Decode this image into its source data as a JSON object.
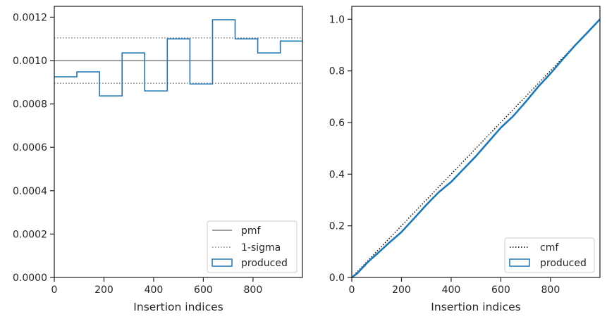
{
  "chart_data": [
    {
      "type": "line",
      "xlabel": "Insertion indices",
      "ylabel": "",
      "xlim": [
        0,
        999
      ],
      "ylim": [
        0,
        0.00125
      ],
      "xticks": [
        0,
        200,
        400,
        600,
        800
      ],
      "yticks": [
        0,
        0.0002,
        0.0004,
        0.0006,
        0.0008,
        0.001,
        0.0012
      ],
      "xtick_labels": [
        "0",
        "200",
        "400",
        "600",
        "800"
      ],
      "ytick_labels": [
        "0.0000",
        "0.0002",
        "0.0004",
        "0.0006",
        "0.0008",
        "0.0010",
        "0.0012"
      ],
      "grid": false,
      "legend_position": "lower-right",
      "series": [
        {
          "name": "pmf",
          "style": "solid",
          "color": "#808080",
          "y": 0.001
        },
        {
          "name": "1-sigma",
          "style": "dotted",
          "color": "#808080",
          "y_values": [
            0.0008953,
            0.0011047
          ]
        },
        {
          "name": "produced",
          "style": "step-histogram",
          "color": "#1f77b4",
          "bin_edges": [
            0,
            91,
            182,
            273,
            364,
            455,
            546,
            637,
            728,
            819,
            910,
            999
          ],
          "values": [
            0.000925,
            0.000948,
            0.000837,
            0.001035,
            0.00086,
            0.0011,
            0.000892,
            0.001188,
            0.0011,
            0.001035,
            0.00109
          ]
        }
      ]
    },
    {
      "type": "line",
      "xlabel": "Insertion indices",
      "ylabel": "",
      "xlim": [
        0,
        999
      ],
      "ylim": [
        0,
        1.05
      ],
      "xticks": [
        0,
        200,
        400,
        600,
        800
      ],
      "yticks": [
        0,
        0.2,
        0.4,
        0.6,
        0.8,
        1.0
      ],
      "xtick_labels": [
        "0",
        "200",
        "400",
        "600",
        "800"
      ],
      "ytick_labels": [
        "0.0",
        "0.2",
        "0.4",
        "0.6",
        "0.8",
        "1.0"
      ],
      "grid": false,
      "legend_position": "lower-right",
      "series": [
        {
          "name": "cmf",
          "style": "dotted",
          "color": "#000000",
          "x": [
            0,
            999
          ],
          "y": [
            0,
            1.0
          ]
        },
        {
          "name": "produced",
          "style": "solid",
          "color": "#1f77b4",
          "x": [
            0,
            20,
            40,
            60,
            80,
            100,
            150,
            200,
            250,
            300,
            350,
            400,
            450,
            500,
            550,
            600,
            650,
            700,
            750,
            800,
            850,
            900,
            950,
            999
          ],
          "y": [
            0,
            0.014,
            0.034,
            0.055,
            0.073,
            0.09,
            0.134,
            0.176,
            0.228,
            0.281,
            0.33,
            0.37,
            0.42,
            0.47,
            0.525,
            0.58,
            0.625,
            0.68,
            0.738,
            0.79,
            0.846,
            0.9,
            0.95,
            1.0
          ]
        }
      ]
    }
  ]
}
